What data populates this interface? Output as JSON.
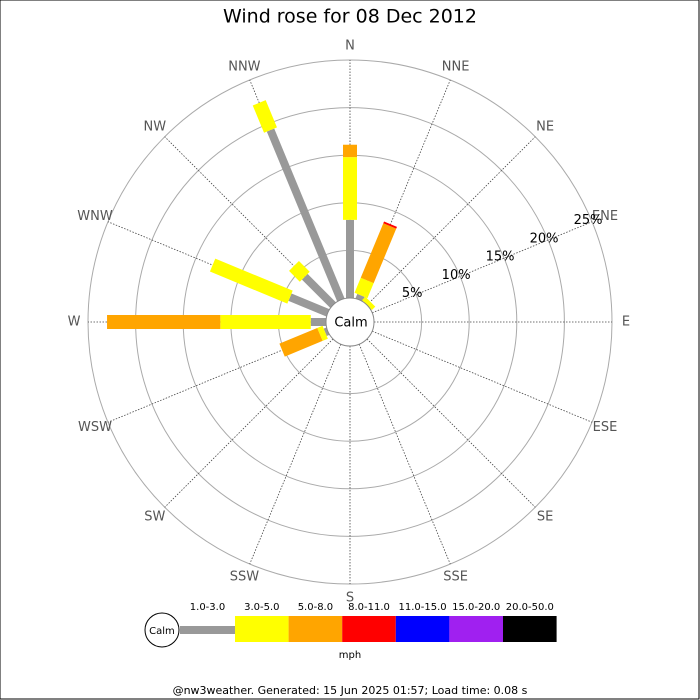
{
  "chart_data": {
    "type": "windrose",
    "title": "Wind rose for 08 Dec 2012",
    "directions": [
      "N",
      "NNE",
      "NE",
      "ENE",
      "E",
      "ESE",
      "SE",
      "SSE",
      "S",
      "SSW",
      "SW",
      "WSW",
      "W",
      "WNW",
      "NW",
      "NNW"
    ],
    "calm_label": "Calm",
    "unit": "mph",
    "rlim": [
      0,
      25
    ],
    "rticks": [
      {
        "value": 5,
        "label": "5%"
      },
      {
        "value": 10,
        "label": "10%"
      },
      {
        "value": 15,
        "label": "15%"
      },
      {
        "value": 20,
        "label": "20%"
      },
      {
        "value": 25,
        "label": "25%"
      }
    ],
    "series": [
      {
        "name": "1.0-3.0",
        "color": "#999999",
        "values": [
          8.2,
          0.5,
          0,
          0,
          0,
          0,
          0,
          0,
          0,
          0,
          0,
          0.3,
          1.6,
          4.3,
          4.2,
          19.3
        ]
      },
      {
        "name": "3.0-5.0",
        "color": "#ffff00",
        "values": [
          6.6,
          1.7,
          0.5,
          0,
          0,
          0,
          0,
          0,
          0,
          0,
          0,
          0.6,
          9.5,
          8.8,
          1.6,
          3.1
        ]
      },
      {
        "name": "5.0-8.0",
        "color": "#ffa500",
        "values": [
          1.3,
          6.2,
          0,
          0,
          0,
          0,
          0,
          0,
          0,
          0,
          0,
          4.3,
          11.9,
          0,
          0,
          0
        ]
      },
      {
        "name": "8.0-11.0",
        "color": "#ff0000",
        "values": [
          0,
          0.2,
          0,
          0,
          0,
          0,
          0,
          0,
          0,
          0,
          0,
          0,
          0,
          0,
          0,
          0
        ]
      },
      {
        "name": "11.0-15.0",
        "color": "#0000ff",
        "values": [
          0,
          0,
          0,
          0,
          0,
          0,
          0,
          0,
          0,
          0,
          0,
          0,
          0,
          0,
          0,
          0
        ]
      },
      {
        "name": "15.0-20.0",
        "color": "#a020f0",
        "values": [
          0,
          0,
          0,
          0,
          0,
          0,
          0,
          0,
          0,
          0,
          0,
          0,
          0,
          0,
          0,
          0
        ]
      },
      {
        "name": "20.0-50.0",
        "color": "#000000",
        "values": [
          0,
          0,
          0,
          0,
          0,
          0,
          0,
          0,
          0,
          0,
          0,
          0,
          0,
          0,
          0,
          0
        ]
      }
    ]
  },
  "footer": "@nw3weather. Generated: 15 Jun 2025 01:57; Load time: 0.08 s"
}
